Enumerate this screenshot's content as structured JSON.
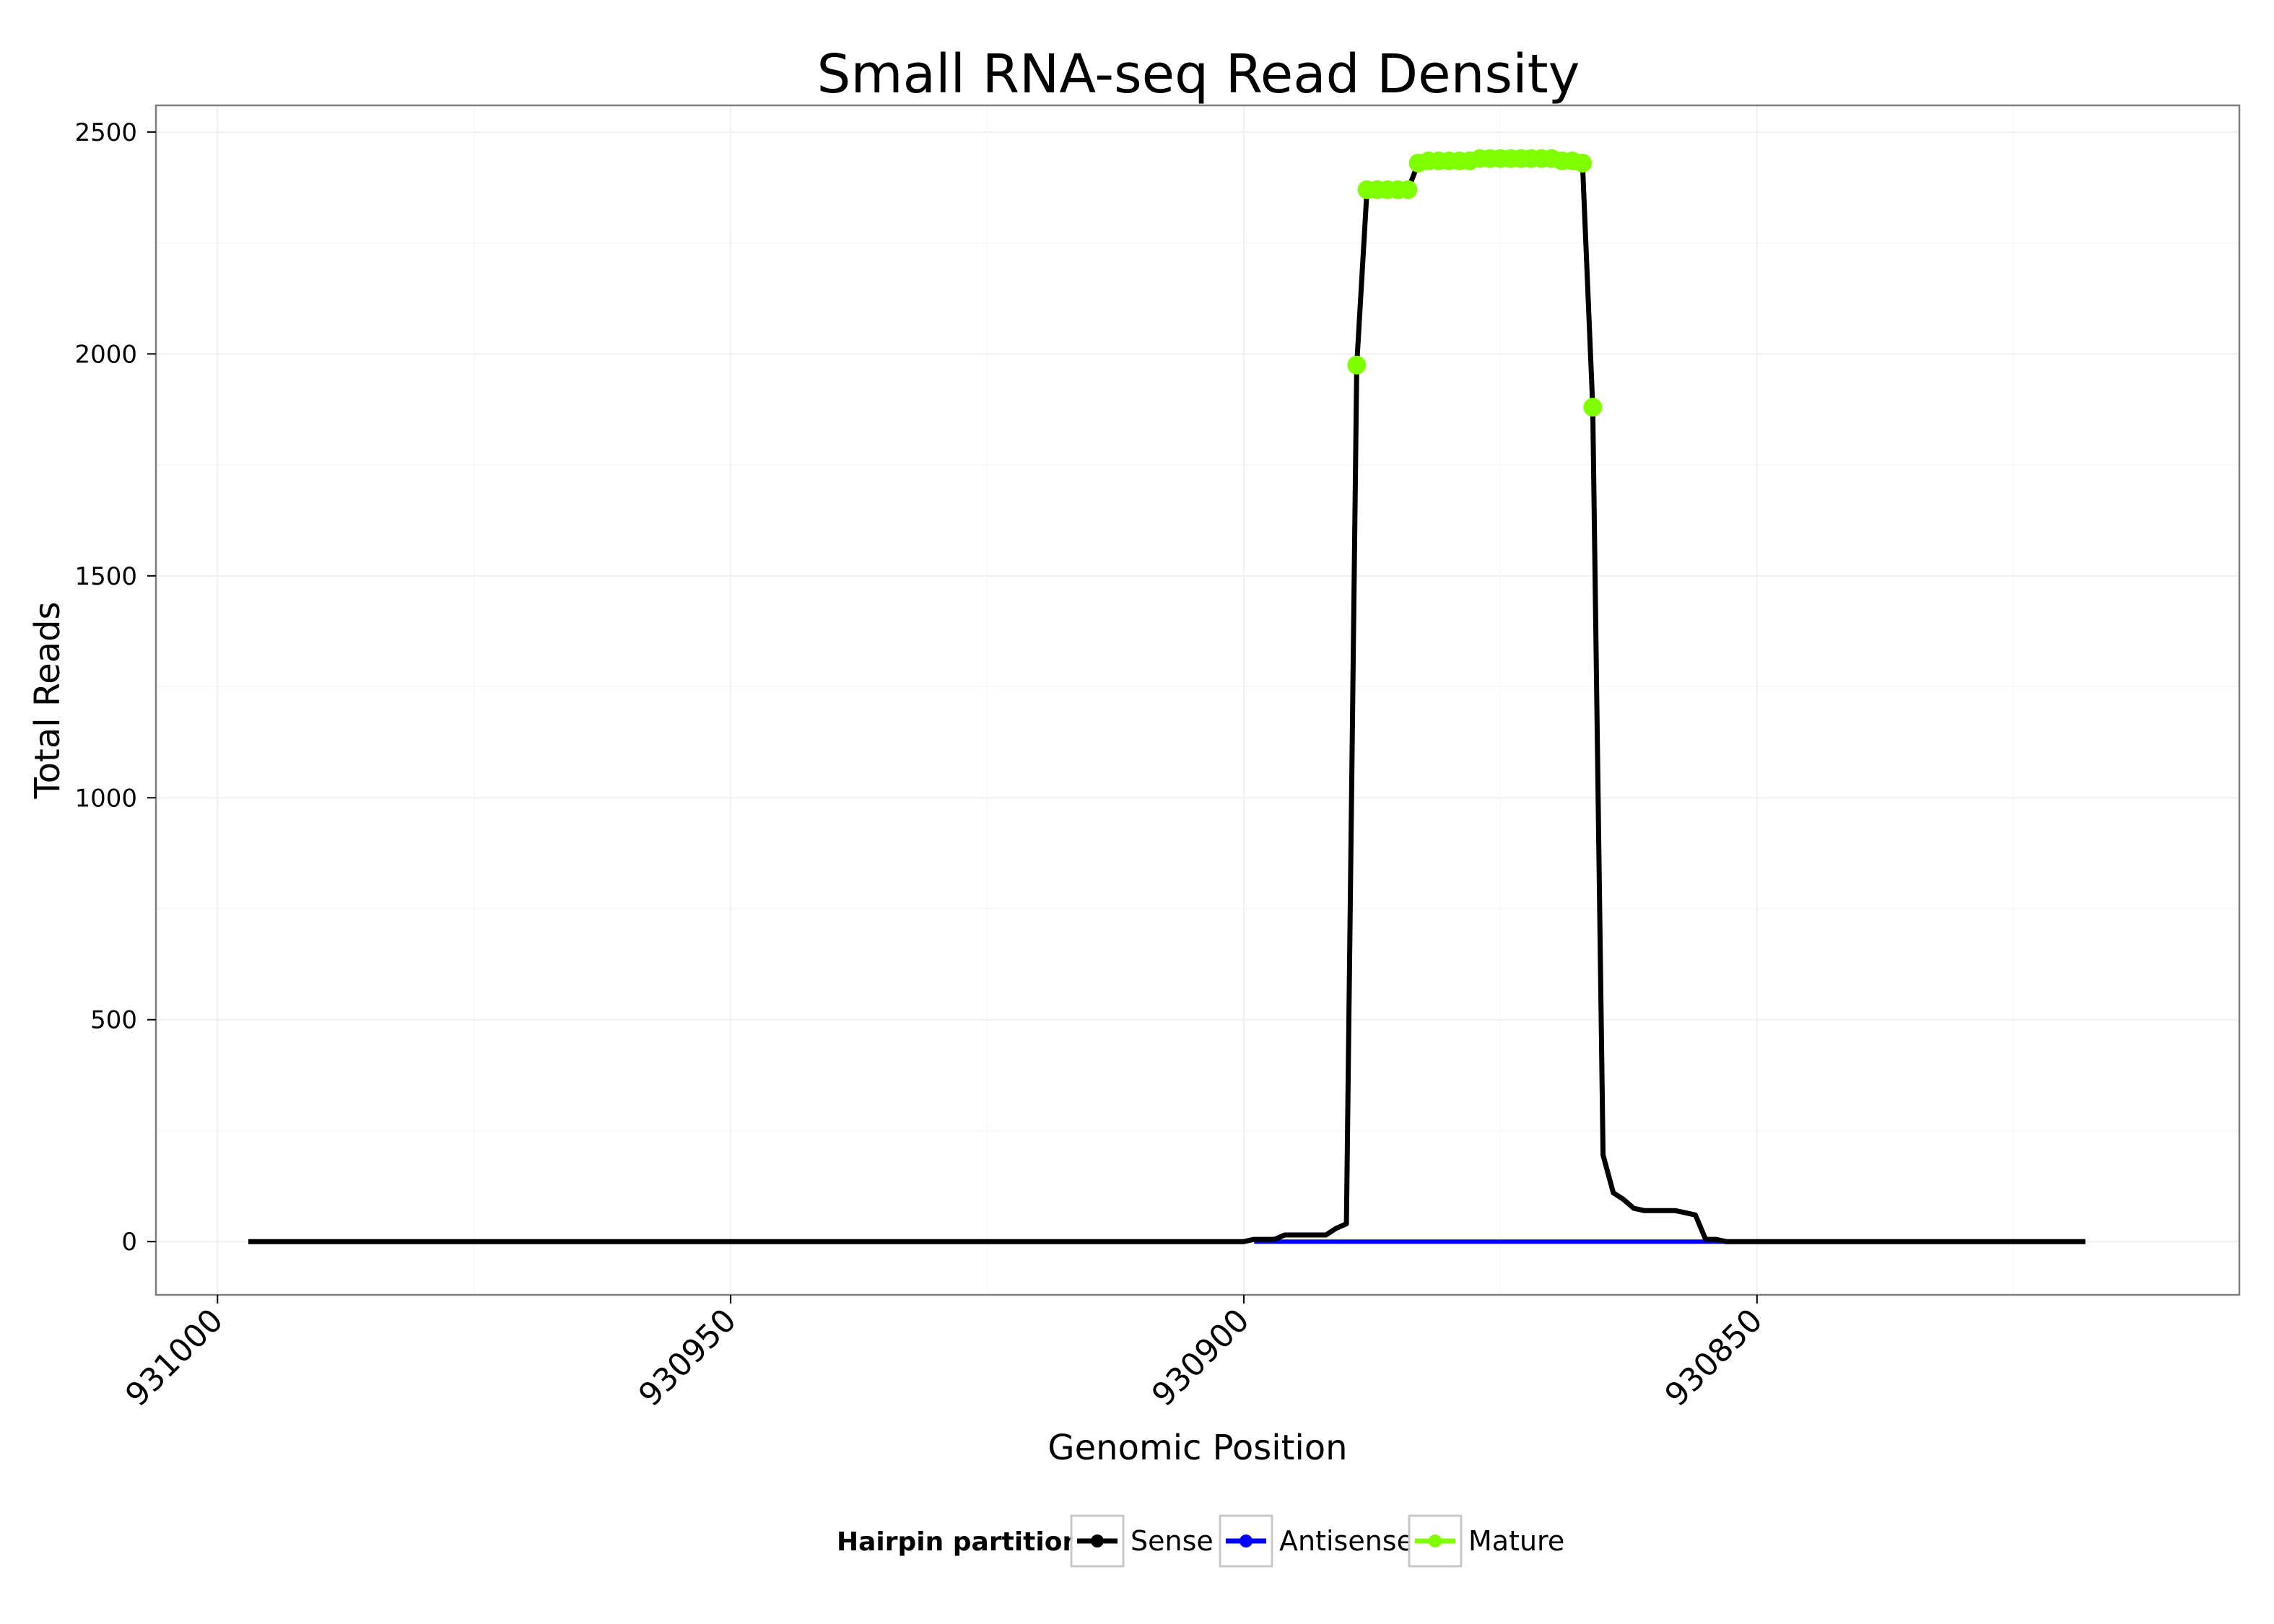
{
  "chart_data": {
    "type": "line",
    "title": "Small RNA-seq Read Density",
    "xlabel": "Genomic Position",
    "ylabel": "Total Reads",
    "x_reversed": true,
    "xlim": [
      931006,
      930803
    ],
    "ylim": [
      -120,
      2560
    ],
    "x_ticks": [
      931000,
      930950,
      930900,
      930850
    ],
    "x_tick_labels": [
      "931000",
      "930950",
      "930900",
      "930850"
    ],
    "y_ticks": [
      0,
      500,
      1000,
      1500,
      2000,
      2500
    ],
    "y_tick_labels": [
      "0",
      "500",
      "1000",
      "1500",
      "2000",
      "2500"
    ],
    "grid": true,
    "legend": {
      "title": "Hairpin partition",
      "position": "bottom",
      "entries": [
        {
          "label": "Sense",
          "color": "#000000"
        },
        {
          "label": "Antisense",
          "color": "#0000ff"
        },
        {
          "label": "Mature",
          "color": "#7fff00"
        }
      ]
    },
    "series": [
      {
        "name": "Sense",
        "color": "#000000",
        "x": [
          930997,
          930900,
          930899,
          930898,
          930897,
          930896,
          930895,
          930894,
          930893,
          930892,
          930891,
          930890,
          930889,
          930888,
          930887,
          930886,
          930885,
          930884,
          930883,
          930882,
          930881,
          930880,
          930879,
          930878,
          930877,
          930876,
          930875,
          930874,
          930873,
          930872,
          930871,
          930870,
          930869,
          930868,
          930867,
          930866,
          930865,
          930864,
          930863,
          930862,
          930861,
          930860,
          930859,
          930858,
          930857,
          930856,
          930855,
          930854,
          930853,
          930852,
          930851,
          930850,
          930849,
          930848,
          930818
        ],
        "y": [
          0,
          0,
          5,
          5,
          5,
          15,
          15,
          15,
          15,
          15,
          30,
          40,
          1975,
          2370,
          2370,
          2370,
          2370,
          2370,
          2430,
          2435,
          2435,
          2435,
          2435,
          2435,
          2440,
          2440,
          2440,
          2440,
          2440,
          2440,
          2440,
          2440,
          2435,
          2435,
          2430,
          1880,
          195,
          110,
          95,
          75,
          70,
          70,
          70,
          70,
          65,
          60,
          5,
          5,
          0,
          0,
          0,
          0,
          0,
          0,
          0
        ]
      },
      {
        "name": "Antisense",
        "color": "#0000ff",
        "x": [
          930899,
          930848
        ],
        "y": [
          0,
          0
        ]
      },
      {
        "name": "Mature",
        "color": "#7fff00",
        "x": [
          930889,
          930888,
          930887,
          930886,
          930885,
          930884,
          930883,
          930882,
          930881,
          930880,
          930879,
          930878,
          930877,
          930876,
          930875,
          930874,
          930873,
          930872,
          930871,
          930870,
          930869,
          930868,
          930867,
          930866
        ],
        "y": [
          1975,
          2370,
          2370,
          2370,
          2370,
          2370,
          2430,
          2435,
          2435,
          2435,
          2435,
          2435,
          2440,
          2440,
          2440,
          2440,
          2440,
          2440,
          2440,
          2440,
          2435,
          2435,
          2430,
          1880
        ]
      }
    ]
  }
}
